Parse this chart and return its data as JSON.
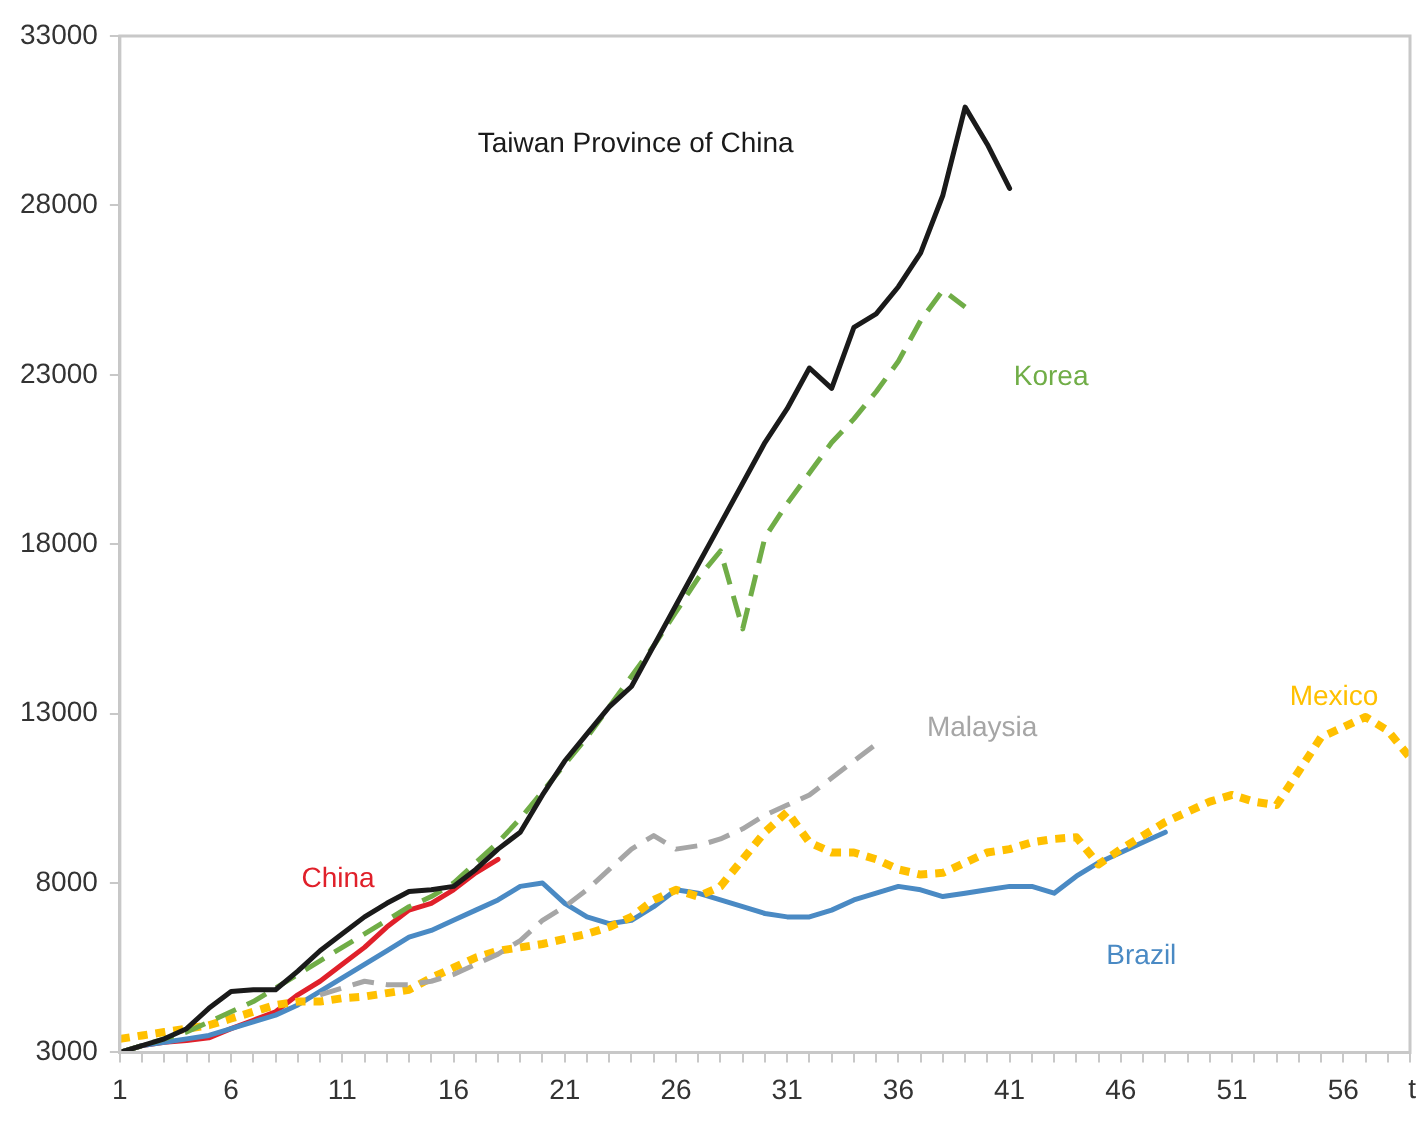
{
  "chart_data": {
    "type": "line",
    "xlabel": "t",
    "xlim": [
      1,
      59
    ],
    "xticks": [
      1,
      {
        "value": 2,
        "label": null
      },
      {
        "value": 3,
        "label": null
      },
      {
        "value": 4,
        "label": null
      },
      {
        "value": 5,
        "label": null
      },
      6,
      {
        "value": 7,
        "label": null
      },
      {
        "value": 8,
        "label": null
      },
      {
        "value": 9,
        "label": null
      },
      {
        "value": 10,
        "label": null
      },
      11,
      {
        "value": 12,
        "label": null
      },
      {
        "value": 13,
        "label": null
      },
      {
        "value": 14,
        "label": null
      },
      {
        "value": 15,
        "label": null
      },
      16,
      {
        "value": 17,
        "label": null
      },
      {
        "value": 18,
        "label": null
      },
      {
        "value": 19,
        "label": null
      },
      {
        "value": 20,
        "label": null
      },
      21,
      {
        "value": 22,
        "label": null
      },
      {
        "value": 23,
        "label": null
      },
      {
        "value": 24,
        "label": null
      },
      {
        "value": 25,
        "label": null
      },
      26,
      {
        "value": 27,
        "label": null
      },
      {
        "value": 28,
        "label": null
      },
      {
        "value": 29,
        "label": null
      },
      {
        "value": 30,
        "label": null
      },
      31,
      {
        "value": 32,
        "label": null
      },
      {
        "value": 33,
        "label": null
      },
      {
        "value": 34,
        "label": null
      },
      {
        "value": 35,
        "label": null
      },
      36,
      {
        "value": 37,
        "label": null
      },
      {
        "value": 38,
        "label": null
      },
      {
        "value": 39,
        "label": null
      },
      {
        "value": 40,
        "label": null
      },
      41,
      {
        "value": 42,
        "label": null
      },
      {
        "value": 43,
        "label": null
      },
      {
        "value": 44,
        "label": null
      },
      {
        "value": 45,
        "label": null
      },
      46,
      {
        "value": 47,
        "label": null
      },
      {
        "value": 48,
        "label": null
      },
      {
        "value": 49,
        "label": null
      },
      {
        "value": 50,
        "label": null
      },
      51,
      {
        "value": 52,
        "label": null
      },
      {
        "value": 53,
        "label": null
      },
      {
        "value": 54,
        "label": null
      },
      {
        "value": 55,
        "label": null
      },
      56,
      {
        "value": 57,
        "label": null
      },
      {
        "value": 58,
        "label": null
      },
      {
        "value": 59,
        "label": null
      }
    ],
    "ylim": [
      3000,
      33000
    ],
    "yticks": [
      3000,
      8000,
      13000,
      18000,
      23000,
      28000,
      33000
    ],
    "grid": false,
    "legend": false,
    "marker": "none",
    "series": [
      {
        "name": "Taiwan Province of China",
        "color": "#1a1a1a",
        "line_style": "solid",
        "x": [
          1,
          2,
          3,
          4,
          5,
          6,
          7,
          8,
          9,
          10,
          11,
          12,
          13,
          14,
          15,
          16,
          17,
          18,
          19,
          20,
          21,
          22,
          23,
          24,
          25,
          26,
          27,
          28,
          29,
          30,
          31,
          32,
          33,
          34,
          35,
          36,
          37,
          38,
          39,
          40,
          41
        ],
        "values": [
          3000,
          3200,
          3400,
          3700,
          4300,
          4800,
          4850,
          4850,
          5400,
          6000,
          6500,
          7000,
          7400,
          7750,
          7800,
          7900,
          8400,
          9000,
          9500,
          10600,
          11600,
          12400,
          13200,
          13800,
          15000,
          16200,
          17400,
          18600,
          19800,
          21000,
          22000,
          23200,
          22600,
          24400,
          24800,
          25600,
          26600,
          28300,
          30900,
          29800,
          28500
        ]
      },
      {
        "name": "Korea",
        "color": "#70ad47",
        "line_style": "dashed",
        "x": [
          1,
          2,
          3,
          4,
          5,
          6,
          7,
          8,
          9,
          10,
          11,
          12,
          13,
          14,
          15,
          16,
          17,
          18,
          19,
          20,
          21,
          22,
          23,
          24,
          25,
          26,
          27,
          28,
          29,
          30,
          31,
          32,
          33,
          34,
          35,
          36,
          37,
          38,
          39
        ],
        "values": [
          3000,
          3200,
          3400,
          3600,
          3900,
          4200,
          4500,
          4900,
          5300,
          5700,
          6100,
          6500,
          6900,
          7300,
          7600,
          8000,
          8600,
          9200,
          9900,
          10700,
          11500,
          12300,
          13200,
          14100,
          15000,
          16000,
          17000,
          17800,
          15500,
          18200,
          19200,
          20100,
          21000,
          21700,
          22500,
          23400,
          24600,
          25500,
          25000
        ]
      },
      {
        "name": "Malaysia",
        "color": "#a6a6a6",
        "line_style": "dashed",
        "x": [
          10,
          11,
          12,
          13,
          14,
          15,
          16,
          17,
          18,
          19,
          20,
          21,
          22,
          23,
          24,
          25,
          26,
          27,
          28,
          29,
          30,
          31,
          32,
          33,
          34,
          35
        ],
        "values": [
          4700,
          4900,
          5100,
          5000,
          5000,
          5100,
          5300,
          5600,
          5900,
          6300,
          6900,
          7300,
          7800,
          8400,
          9000,
          9400,
          9000,
          9100,
          9300,
          9600,
          10000,
          10300,
          10600,
          11100,
          11600,
          12100
        ]
      },
      {
        "name": "Mexico",
        "color": "#ffc000",
        "line_style": "dotted",
        "x": [
          1,
          2,
          3,
          4,
          5,
          6,
          7,
          8,
          9,
          10,
          11,
          12,
          13,
          14,
          15,
          16,
          17,
          18,
          19,
          20,
          21,
          22,
          23,
          24,
          25,
          26,
          27,
          28,
          29,
          30,
          31,
          32,
          33,
          34,
          35,
          36,
          37,
          38,
          39,
          40,
          41,
          42,
          43,
          44,
          45,
          46,
          47,
          48,
          49,
          50,
          51,
          52,
          53,
          54,
          55,
          56,
          57,
          58,
          59
        ],
        "values": [
          3400,
          3500,
          3600,
          3700,
          3800,
          4000,
          4200,
          4400,
          4500,
          4500,
          4600,
          4650,
          4750,
          4850,
          5200,
          5500,
          5800,
          6000,
          6100,
          6200,
          6350,
          6500,
          6700,
          7000,
          7500,
          7800,
          7600,
          7900,
          8700,
          9500,
          10100,
          9200,
          8900,
          8900,
          8700,
          8400,
          8250,
          8300,
          8600,
          8900,
          9000,
          9200,
          9300,
          9350,
          8550,
          9000,
          9400,
          9800,
          10100,
          10400,
          10600,
          10400,
          10300,
          11300,
          12300,
          12600,
          12900,
          12500,
          11700
        ]
      },
      {
        "name": "Brazil",
        "color": "#4a8ac4",
        "line_style": "solid",
        "x": [
          1,
          2,
          3,
          4,
          5,
          6,
          7,
          8,
          9,
          10,
          11,
          12,
          13,
          14,
          15,
          16,
          17,
          18,
          19,
          20,
          21,
          22,
          23,
          24,
          25,
          26,
          27,
          28,
          29,
          30,
          31,
          32,
          33,
          34,
          35,
          36,
          37,
          38,
          39,
          40,
          41,
          42,
          43,
          44,
          45,
          46,
          47,
          48
        ],
        "values": [
          3000,
          3200,
          3300,
          3400,
          3500,
          3700,
          3900,
          4100,
          4400,
          4800,
          5200,
          5600,
          6000,
          6400,
          6600,
          6900,
          7200,
          7500,
          7900,
          8000,
          7400,
          7000,
          6800,
          6900,
          7300,
          7800,
          7700,
          7500,
          7300,
          7100,
          7000,
          7000,
          7200,
          7500,
          7700,
          7900,
          7800,
          7600,
          7700,
          7800,
          7900,
          7900,
          7700,
          8200,
          8600,
          8900,
          9200,
          9500
        ]
      },
      {
        "name": "China",
        "color": "#e0202a",
        "line_style": "solid",
        "x": [
          1,
          2,
          3,
          4,
          5,
          6,
          7,
          8,
          9,
          10,
          11,
          12,
          13,
          14,
          15,
          16,
          17,
          18
        ],
        "values": [
          3000,
          3200,
          3300,
          3350,
          3430,
          3700,
          3950,
          4200,
          4700,
          5100,
          5600,
          6100,
          6700,
          7200,
          7400,
          7800,
          8300,
          8700
        ]
      }
    ]
  }
}
